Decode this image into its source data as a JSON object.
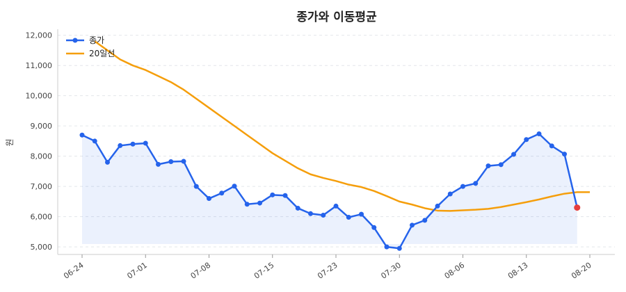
{
  "chart_data": {
    "type": "line",
    "title": "종가와 이동평균",
    "xlabel": "",
    "ylabel": "원",
    "ylim": [
      4750,
      12200
    ],
    "yticks": [
      5000,
      6000,
      7000,
      8000,
      9000,
      10000,
      11000,
      12000
    ],
    "ytick_labels": [
      "5,000",
      "6,000",
      "7,000",
      "8,000",
      "9,000",
      "10,000",
      "11,000",
      "12,000"
    ],
    "xtick_labels": [
      "06-24",
      "07-01",
      "07-08",
      "07-15",
      "07-23",
      "07-30",
      "08-06",
      "08-13",
      "08-20"
    ],
    "xtick_index": [
      0,
      5,
      10,
      15,
      20,
      25,
      30,
      35,
      40
    ],
    "x": [
      "06-24",
      "06-25",
      "06-26",
      "06-27",
      "06-28",
      "07-01",
      "07-02",
      "07-03",
      "07-04",
      "07-05",
      "07-08",
      "07-09",
      "07-10",
      "07-11",
      "07-12",
      "07-15",
      "07-16",
      "07-17",
      "07-18",
      "07-19",
      "07-23",
      "07-24",
      "07-25",
      "07-26",
      "07-29",
      "07-30",
      "07-31",
      "08-01",
      "08-02",
      "08-05",
      "08-06",
      "08-07",
      "08-08",
      "08-09",
      "08-12",
      "08-13",
      "08-14",
      "08-16",
      "08-19",
      "08-20",
      "08-21"
    ],
    "grid": true,
    "legend_position": "top-left",
    "series": [
      {
        "name": "종가",
        "color": "#2563eb",
        "values": [
          8700,
          8500,
          7800,
          8350,
          8400,
          8430,
          7730,
          7820,
          7830,
          7000,
          6600,
          6780,
          7010,
          6410,
          6450,
          6720,
          6700,
          6280,
          6100,
          6050,
          6350,
          5980,
          6080,
          5640,
          5000,
          4950,
          5720,
          5880,
          6350,
          6750,
          7000,
          7100,
          7680,
          7720,
          8060,
          8550,
          8740,
          8340,
          8070,
          6300,
          null
        ],
        "fill": true,
        "markers": true,
        "last_point_color": "#e53e3e"
      },
      {
        "name": "20일선",
        "color": "#f59e0b",
        "values": [
          null,
          11800,
          11500,
          11200,
          11000,
          10850,
          10650,
          10450,
          10200,
          9900,
          9600,
          9300,
          9000,
          8700,
          8400,
          8100,
          7850,
          7600,
          7400,
          7280,
          7180,
          7060,
          6980,
          6850,
          6680,
          6500,
          6400,
          6280,
          6200,
          6190,
          6210,
          6230,
          6260,
          6320,
          6400,
          6480,
          6570,
          6670,
          6760,
          6810,
          6810
        ]
      }
    ]
  }
}
